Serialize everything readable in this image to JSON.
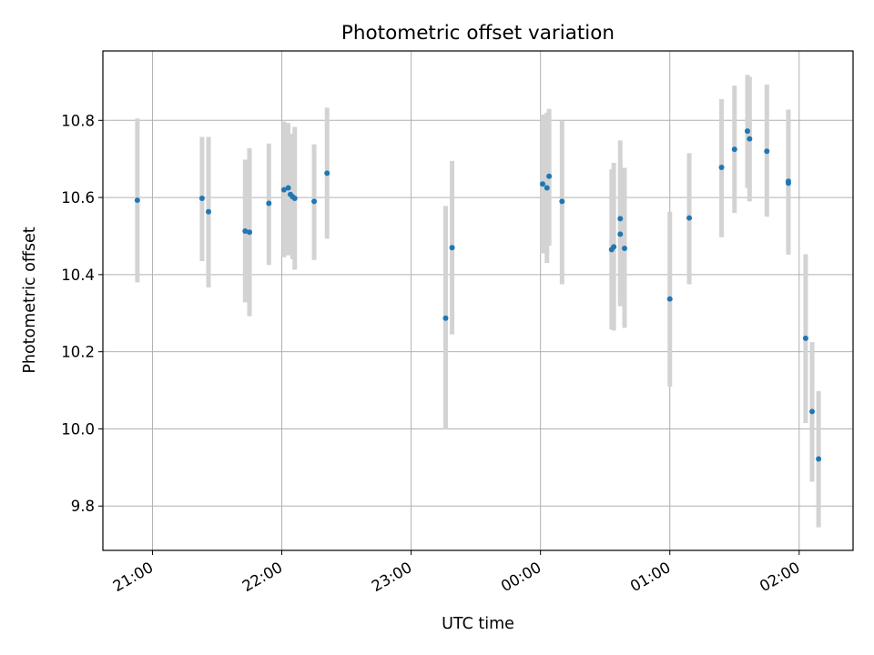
{
  "chart_data": {
    "type": "scatter",
    "title": "Photometric offset variation",
    "xlabel": "UTC time",
    "ylabel": "Photometric offset",
    "x_axis_kind": "time",
    "xlim": [
      "20:37",
      "02:25"
    ],
    "ylim": [
      9.685,
      10.98
    ],
    "grid": true,
    "x_ticks": [
      "21:00",
      "22:00",
      "23:00",
      "00:00",
      "01:00",
      "02:00"
    ],
    "y_ticks": [
      9.8,
      10.0,
      10.2,
      10.4,
      10.6,
      10.8
    ],
    "y_tick_labels": [
      "9.8",
      "10.0",
      "10.2",
      "10.4",
      "10.6",
      "10.8"
    ],
    "colors": {
      "points": "#1f77b4",
      "errorbars": "#d3d3d3",
      "grid": "#b0b0b0"
    },
    "points": [
      {
        "x": "20:53",
        "y": 10.593,
        "lo": 10.38,
        "hi": 10.805
      },
      {
        "x": "21:23",
        "y": 10.598,
        "lo": 10.435,
        "hi": 10.757
      },
      {
        "x": "21:26",
        "y": 10.563,
        "lo": 10.367,
        "hi": 10.757
      },
      {
        "x": "21:43",
        "y": 10.513,
        "lo": 10.328,
        "hi": 10.698
      },
      {
        "x": "21:45",
        "y": 10.51,
        "lo": 10.292,
        "hi": 10.728
      },
      {
        "x": "21:54",
        "y": 10.585,
        "lo": 10.425,
        "hi": 10.74
      },
      {
        "x": "22:01",
        "y": 10.62,
        "lo": 10.445,
        "hi": 10.797
      },
      {
        "x": "22:03",
        "y": 10.625,
        "lo": 10.45,
        "hi": 10.793
      },
      {
        "x": "22:04",
        "y": 10.608,
        "lo": 10.455,
        "hi": 10.76
      },
      {
        "x": "22:05",
        "y": 10.602,
        "lo": 10.44,
        "hi": 10.765
      },
      {
        "x": "22:06",
        "y": 10.598,
        "lo": 10.413,
        "hi": 10.783
      },
      {
        "x": "22:15",
        "y": 10.59,
        "lo": 10.438,
        "hi": 10.738
      },
      {
        "x": "22:21",
        "y": 10.663,
        "lo": 10.493,
        "hi": 10.833
      },
      {
        "x": "23:16",
        "y": 10.287,
        "lo": 9.998,
        "hi": 10.578
      },
      {
        "x": "23:19",
        "y": 10.47,
        "lo": 10.245,
        "hi": 10.695
      },
      {
        "x": "00:01",
        "y": 10.635,
        "lo": 10.455,
        "hi": 10.815
      },
      {
        "x": "00:03",
        "y": 10.625,
        "lo": 10.43,
        "hi": 10.82
      },
      {
        "x": "00:04",
        "y": 10.655,
        "lo": 10.475,
        "hi": 10.83
      },
      {
        "x": "00:10",
        "y": 10.59,
        "lo": 10.375,
        "hi": 10.798
      },
      {
        "x": "00:33",
        "y": 10.465,
        "lo": 10.258,
        "hi": 10.673
      },
      {
        "x": "00:34",
        "y": 10.472,
        "lo": 10.255,
        "hi": 10.69
      },
      {
        "x": "00:37",
        "y": 10.505,
        "lo": 10.318,
        "hi": 10.692
      },
      {
        "x": "00:37",
        "y": 10.545,
        "lo": 10.34,
        "hi": 10.748
      },
      {
        "x": "00:39",
        "y": 10.468,
        "lo": 10.262,
        "hi": 10.677
      },
      {
        "x": "01:00",
        "y": 10.337,
        "lo": 10.11,
        "hi": 10.563
      },
      {
        "x": "01:09",
        "y": 10.547,
        "lo": 10.375,
        "hi": 10.715
      },
      {
        "x": "01:24",
        "y": 10.678,
        "lo": 10.497,
        "hi": 10.855
      },
      {
        "x": "01:30",
        "y": 10.725,
        "lo": 10.56,
        "hi": 10.89
      },
      {
        "x": "01:36",
        "y": 10.772,
        "lo": 10.625,
        "hi": 10.918
      },
      {
        "x": "01:37",
        "y": 10.752,
        "lo": 10.59,
        "hi": 10.913
      },
      {
        "x": "01:45",
        "y": 10.72,
        "lo": 10.55,
        "hi": 10.893
      },
      {
        "x": "01:55",
        "y": 10.637,
        "lo": 10.452,
        "hi": 10.828
      },
      {
        "x": "01:55",
        "y": 10.642,
        "lo": 10.455,
        "hi": 10.828
      },
      {
        "x": "02:03",
        "y": 10.235,
        "lo": 10.015,
        "hi": 10.453
      },
      {
        "x": "02:06",
        "y": 10.045,
        "lo": 9.863,
        "hi": 10.225
      },
      {
        "x": "02:09",
        "y": 9.922,
        "lo": 9.745,
        "hi": 10.098
      }
    ]
  }
}
